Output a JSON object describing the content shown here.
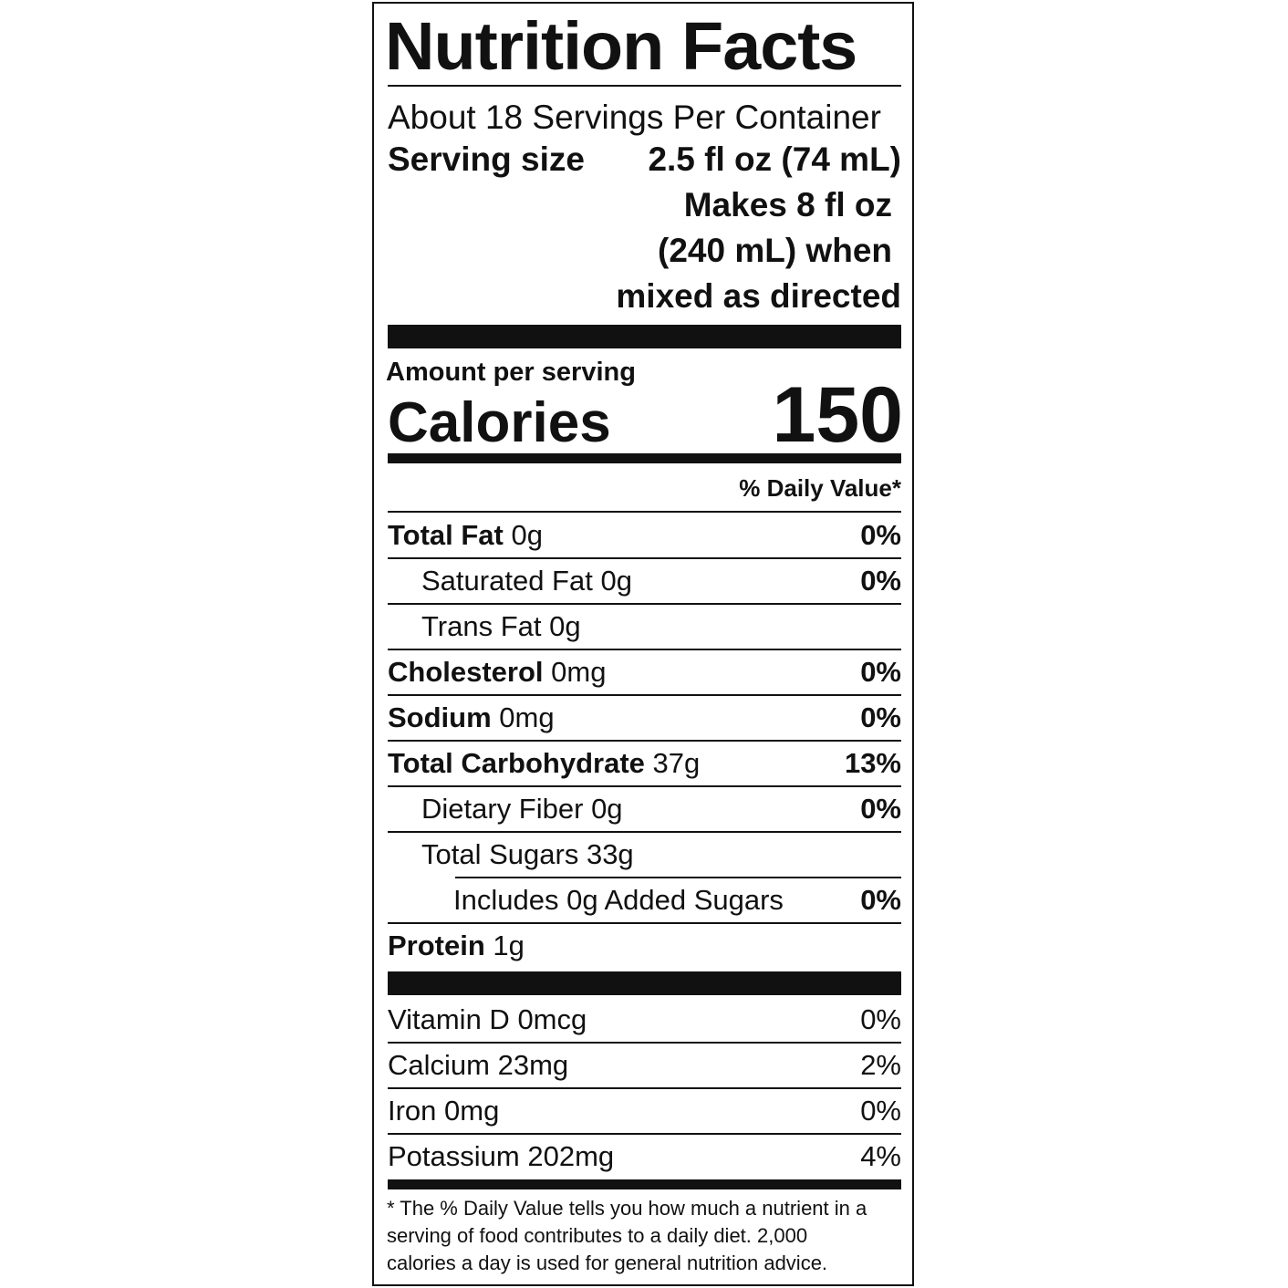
{
  "title": "Nutrition Facts",
  "servings_per_container": "About 18 Servings Per Container",
  "serving_size_label": "Serving size",
  "serving_size_value": "2.5 fl oz (74 mL)",
  "prepared_lines": [
    "Makes 8 fl oz",
    "(240 mL) when",
    "mixed as directed"
  ],
  "amount_per_serving": "Amount per serving",
  "calories_label": "Calories",
  "calories_value": "150",
  "daily_value_header": "% Daily Value*",
  "nutrients": [
    {
      "name": "Total Fat",
      "amount": "0g",
      "dv": "0%"
    },
    {
      "name": "Saturated Fat",
      "amount": "0g",
      "dv": "0%"
    },
    {
      "name": "Trans Fat",
      "amount": "0g",
      "dv": ""
    },
    {
      "name": "Cholesterol",
      "amount": "0mg",
      "dv": "0%"
    },
    {
      "name": "Sodium",
      "amount": "0mg",
      "dv": "0%"
    },
    {
      "name": "Total Carbohydrate",
      "amount": "37g",
      "dv": "13%"
    },
    {
      "name": "Dietary Fiber",
      "amount": "0g",
      "dv": "0%"
    },
    {
      "name": "Total  Sugars",
      "amount": "33g",
      "dv": ""
    },
    {
      "name": "Includes 0g Added Sugars",
      "amount": "",
      "dv": "0%"
    },
    {
      "name": "Protein",
      "amount": "1g",
      "dv": ""
    }
  ],
  "vitamins": [
    {
      "name": "Vitamin D",
      "amount": "0mcg",
      "dv": "0%"
    },
    {
      "name": "Calcium",
      "amount": "23mg",
      "dv": "2%"
    },
    {
      "name": "Iron",
      "amount": "0mg",
      "dv": "0%"
    },
    {
      "name": "Potassium",
      "amount": "202mg",
      "dv": "4%"
    }
  ],
  "footnote": "* The % Daily Value tells you how much a nutrient in a serving of food contributes to a daily diet. 2,000 calories a day is used for general nutrition advice."
}
